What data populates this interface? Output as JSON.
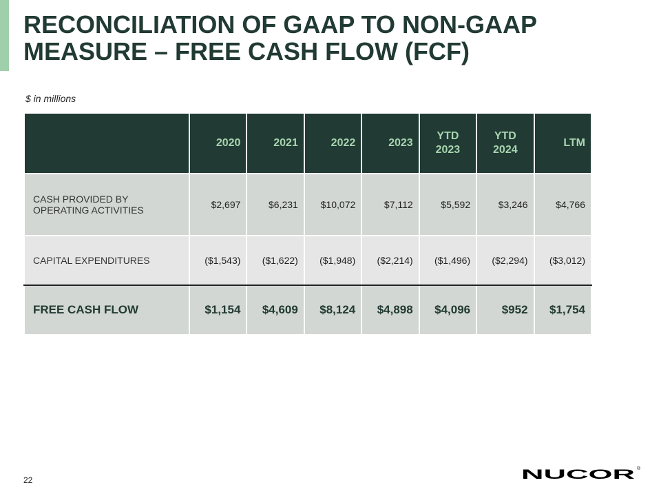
{
  "title_line1": "RECONCILIATION OF GAAP TO NON-GAAP",
  "title_line2": "MEASURE – FREE CASH FLOW (FCF)",
  "units": "$ in millions",
  "columns": [
    "2020",
    "2021",
    "2022",
    "2023",
    "YTD 2023",
    "YTD 2024",
    "LTM"
  ],
  "rows": [
    {
      "label": "CASH PROVIDED BY OPERATING ACTIVITIES",
      "values": [
        "$2,697",
        "$6,231",
        "$10,072",
        "$7,112",
        "$5,592",
        "$3,246",
        "$4,766"
      ]
    },
    {
      "label": "CAPITAL EXPENDITURES",
      "values": [
        "($1,543)",
        "($1,622)",
        "($1,948)",
        "($2,214)",
        "($1,496)",
        "($2,294)",
        "($3,012)"
      ]
    },
    {
      "label": "FREE CASH FLOW",
      "values": [
        "$1,154",
        "$4,609",
        "$8,124",
        "$4,898",
        "$4,096",
        "$952",
        "$1,754"
      ]
    }
  ],
  "page_number": "22",
  "logo": "NUCOR",
  "colors": {
    "header_bg": "#213a33",
    "header_text": "#a8d5b0",
    "accent": "#9fd0ab"
  }
}
